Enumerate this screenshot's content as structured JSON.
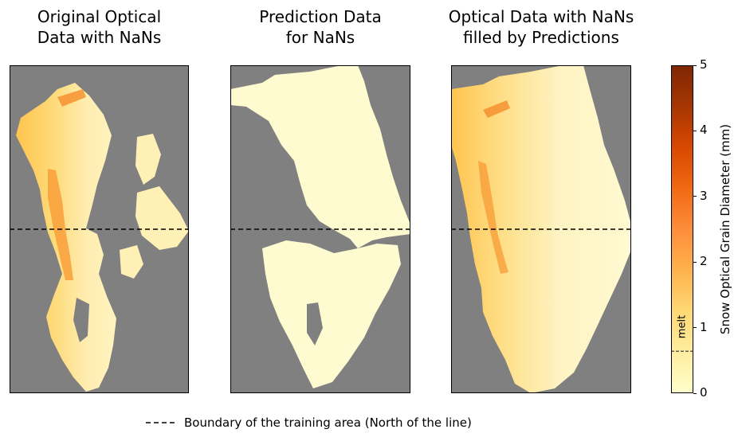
{
  "chart_data": {
    "type": "heatmap",
    "panels": [
      {
        "title": "Original Optical\nData with NaNs",
        "content": "original"
      },
      {
        "title": "Prediction Data\nfor NaNs",
        "content": "prediction"
      },
      {
        "title": "Optical Data with NaNs\nfilled by Predictions",
        "content": "filled"
      }
    ],
    "background_color": "#808080",
    "colorbar": {
      "label": "Snow Optical Grain Diameter (mm)",
      "min": 0,
      "max": 5,
      "ticks": [
        "0",
        "1",
        "2",
        "3",
        "4",
        "5"
      ],
      "colormap": [
        "#ffffcc",
        "#ffeda0",
        "#fed976",
        "#feb24c",
        "#fd8d3c",
        "#f16913",
        "#d94801",
        "#a63603",
        "#7f2704"
      ],
      "melt_threshold": 0.64,
      "melt_label": "melt"
    },
    "boundary_line_fraction": 0.5,
    "legend": {
      "label": "Boundary of the training area (North of the line)"
    }
  }
}
